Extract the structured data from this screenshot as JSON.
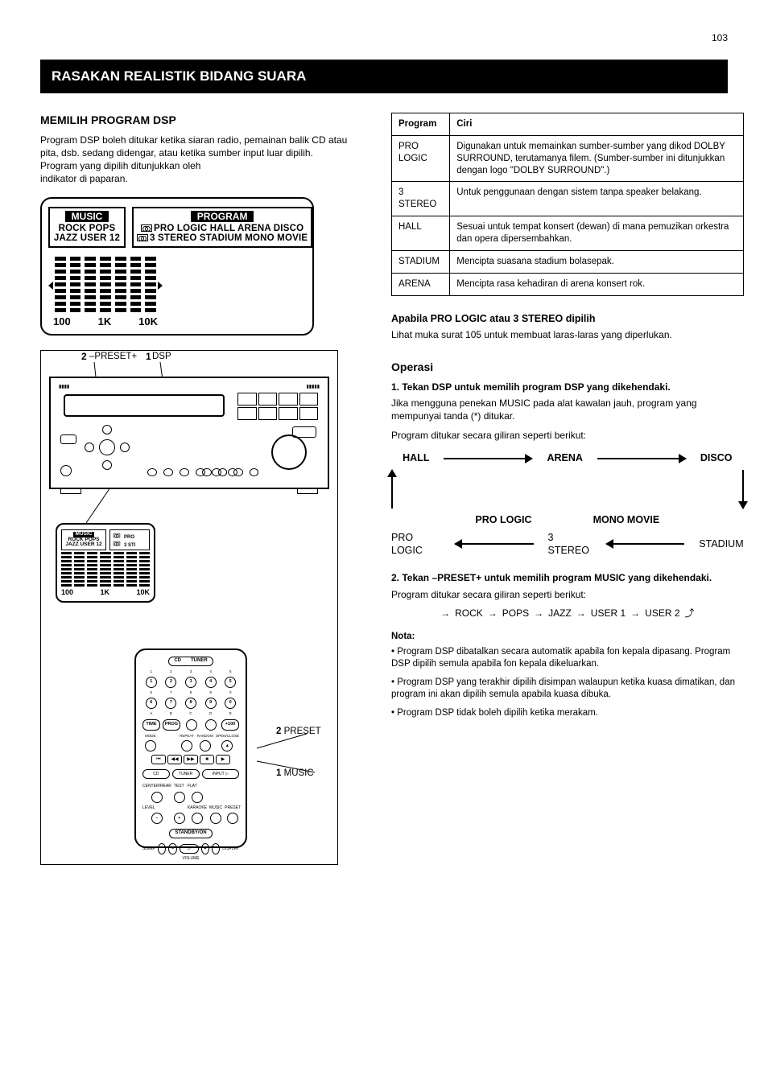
{
  "page_number": "103",
  "section_title": "RASAKAN REALISTIK BIDANG SUARA",
  "left": {
    "dsp_heading": "MEMILIH PROGRAM DSP",
    "dsp_p1": "Program DSP boleh ditukar ketika siaran radio, pemainan balik CD atau pita, dsb. sedang didengar, atau ketika sumber input luar dipilih.",
    "dsp_p2": "Program yang dipilih ditunjukkan oleh",
    "dsp_p3": "indikator di paparan."
  },
  "lcd": {
    "music_title": "MUSIC",
    "music_row1": "ROCK POPS",
    "music_row2": "JAZZ USER 12",
    "program_title": "PROGRAM",
    "program_row1": "PRO LOGIC HALL ARENA DISCO",
    "program_row2": "3 STEREO STADIUM MONO MOVIE",
    "eq_labels": [
      "100",
      "1K",
      "10K"
    ]
  },
  "eq": {
    "bar_heights": [
      [
        1,
        1,
        1,
        1,
        1,
        1,
        1,
        1,
        1
      ],
      [
        1,
        1,
        1,
        1,
        1,
        1,
        1,
        1,
        1
      ],
      [
        1,
        1,
        1,
        1,
        1,
        1,
        1,
        1,
        1
      ],
      [
        1,
        1,
        1,
        1,
        1,
        1,
        1,
        1,
        1
      ],
      [
        1,
        1,
        1,
        1,
        1,
        1,
        1,
        1,
        1
      ],
      [
        1,
        1,
        1,
        1,
        1,
        1,
        1,
        1,
        1
      ],
      [
        1,
        1,
        1,
        1,
        1,
        1,
        1,
        1,
        1
      ]
    ]
  },
  "programs_table": {
    "headers": [
      "Program",
      "Ciri"
    ],
    "rows": [
      [
        "PRO LOGIC",
        "Digunakan untuk memainkan sumber-sumber yang dikod DOLBY SURROUND, terutamanya filem. (Sumber-sumber ini ditunjukkan dengan logo \"DOLBY SURROUND\".)"
      ],
      [
        "3 STEREO",
        "Untuk penggunaan dengan sistem tanpa speaker belakang."
      ],
      [
        "HALL",
        "Sesuai untuk tempat konsert (dewan) di mana pemuzikan orkestra dan opera dipersembahkan."
      ],
      [
        "STADIUM",
        "Mencipta suasana stadium bolasepak."
      ],
      [
        "ARENA",
        "Mencipta rasa kehadiran di arena konsert rok."
      ]
    ]
  },
  "right_note_head": "Apabila PRO LOGIC atau 3 STEREO dipilih",
  "right_note_body": "Lihat muka surat 105 untuk membuat laras-laras yang diperlukan.",
  "right_operation_head": "Operasi",
  "right_step1": "1. Tekan DSP untuk memilih program DSP yang dikehendaki.",
  "right_step1_sub": "Jika mengguna penekan MUSIC pada alat kawalan jauh, program yang mempunyai tanda (*) ditukar.",
  "right_step1_cycle": "Program ditukar secara giliran seperti berikut:",
  "cycle": {
    "a": "HALL",
    "b": "ARENA",
    "c": "DISCO",
    "d": "MONO MOVIE",
    "e": "STADIUM",
    "f": "3 STEREO",
    "g": "PRO LOGIC",
    "h": "PRO LOGIC"
  },
  "right_step2": "2. Tekan –PRESET+ untuk memilih program MUSIC yang dikehendaki.",
  "right_step2_cycle": "Program ditukar secara giliran seperti berikut:",
  "cycle2": [
    "ROCK",
    "POPS",
    "JAZZ",
    "USER 1",
    "USER 2"
  ],
  "notes_title": "Nota:",
  "notes": [
    "Program DSP dibatalkan secara automatik apabila fon kepala dipasang. Program DSP dipilih semula apabila fon kepala dikeluarkan.",
    "Program DSP yang terakhir dipilih disimpan walaupun ketika kuasa dimatikan, dan program ini akan dipilih semula apabila kuasa dibuka.",
    "Program DSP tidak boleh dipilih ketika merakam."
  ],
  "device": {
    "callouts": {
      "preset_minus_plus": "–PRESET+",
      "dsp": "DSP",
      "preset": "PRESET",
      "music": "MUSIC"
    },
    "num1": "1",
    "num2": "2"
  },
  "colors": {
    "bg": "#ffffff",
    "fg": "#000000"
  }
}
